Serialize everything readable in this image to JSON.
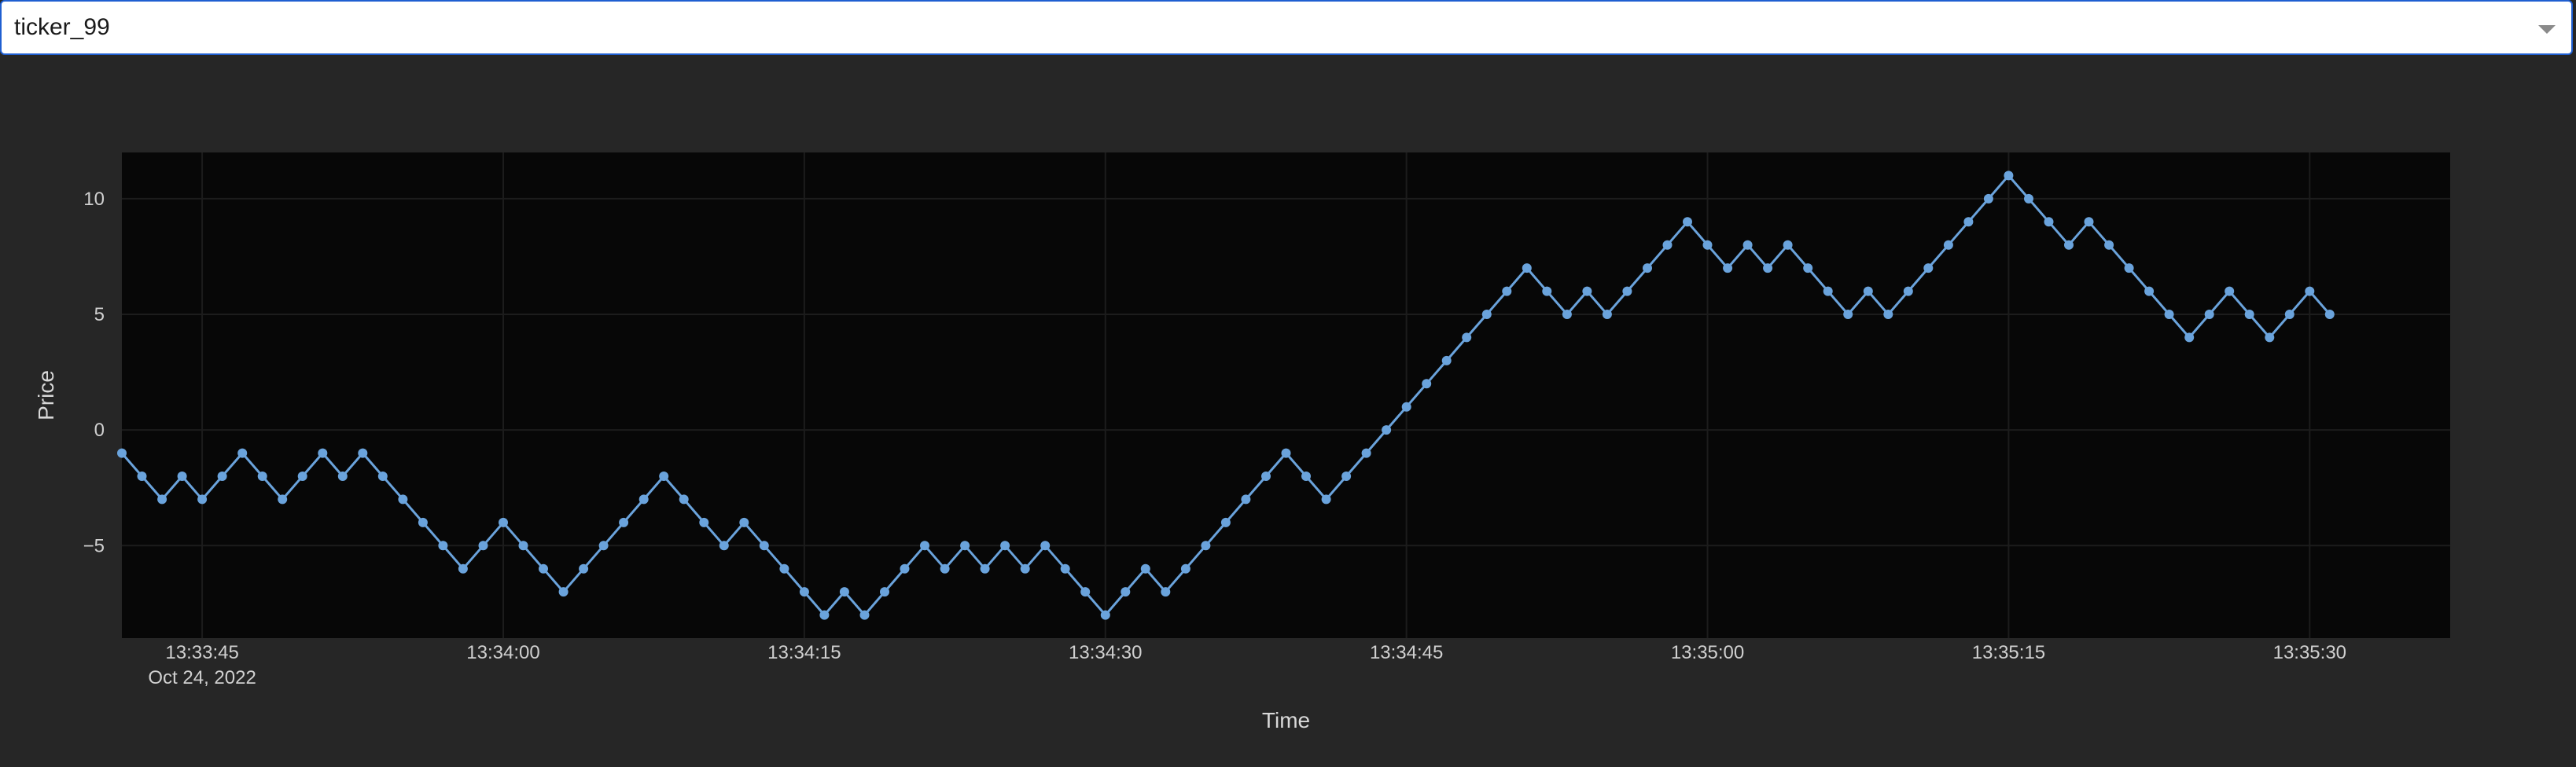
{
  "selector": {
    "value": "ticker_99"
  },
  "colors": {
    "series": "#6aa3dc",
    "plot_background": "#070707",
    "page_background": "#262626",
    "grid": "#1c1c1c"
  },
  "chart_data": {
    "type": "line",
    "title": "",
    "xlabel": "Time",
    "ylabel": "Price",
    "x_start": "13:33:41",
    "x_interval_seconds": 1,
    "x_date": "Oct 24, 2022",
    "x_ticks": [
      {
        "time": "13:33:45",
        "label": "13:33:45",
        "sublabel": "Oct 24, 2022"
      },
      {
        "time": "13:34:00",
        "label": "13:34:00",
        "sublabel": ""
      },
      {
        "time": "13:34:15",
        "label": "13:34:15",
        "sublabel": ""
      },
      {
        "time": "13:34:30",
        "label": "13:34:30",
        "sublabel": ""
      },
      {
        "time": "13:34:45",
        "label": "13:34:45",
        "sublabel": ""
      },
      {
        "time": "13:35:00",
        "label": "13:35:00",
        "sublabel": ""
      },
      {
        "time": "13:35:15",
        "label": "13:35:15",
        "sublabel": ""
      },
      {
        "time": "13:35:30",
        "label": "13:35:30",
        "sublabel": ""
      }
    ],
    "xlim": [
      "13:33:41",
      "13:35:37"
    ],
    "ylim": [
      -9,
      12
    ],
    "y_ticks": [
      -5,
      0,
      5,
      10
    ],
    "grid": true,
    "markers": true,
    "series": [
      {
        "name": "",
        "values": [
          -1,
          -2,
          -3,
          -2,
          -3,
          -2,
          -1,
          -2,
          -3,
          -2,
          -1,
          -2,
          -1,
          -2,
          -3,
          -4,
          -5,
          -6,
          -5,
          -4,
          -5,
          -6,
          -7,
          -6,
          -5,
          -4,
          -3,
          -2,
          -3,
          -4,
          -5,
          -4,
          -5,
          -6,
          -7,
          -8,
          -7,
          -8,
          -7,
          -6,
          -5,
          -6,
          -5,
          -6,
          -5,
          -6,
          -5,
          -6,
          -7,
          -8,
          -7,
          -6,
          -7,
          -6,
          -5,
          -4,
          -3,
          -2,
          -1,
          -2,
          -3,
          -2,
          -1,
          0,
          1,
          2,
          3,
          4,
          5,
          6,
          7,
          6,
          5,
          6,
          5,
          6,
          7,
          8,
          9,
          8,
          7,
          8,
          7,
          8,
          7,
          6,
          5,
          6,
          5,
          6,
          7,
          8,
          9,
          10,
          11,
          10,
          9,
          8,
          9,
          8,
          7,
          6,
          5,
          4,
          5,
          6,
          5,
          4,
          5,
          6,
          5
        ]
      }
    ]
  }
}
